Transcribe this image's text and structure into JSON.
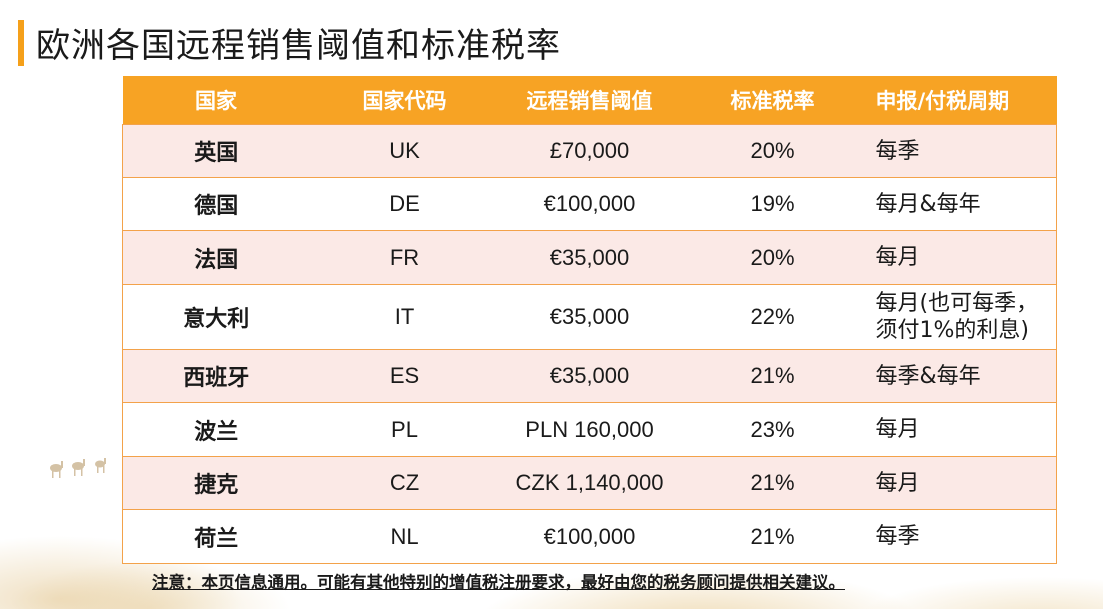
{
  "title": "欧洲各国远程销售阈值和标准税率",
  "table": {
    "headers": [
      "国家",
      "国家代码",
      "远程销售阈值",
      "标准税率",
      "申报/付税周期"
    ],
    "rows": [
      {
        "country": "英国",
        "code": "UK",
        "threshold": "£70,000",
        "rate": "20%",
        "period": [
          "每季"
        ]
      },
      {
        "country": "德国",
        "code": "DE",
        "threshold": "€100,000",
        "rate": "19%",
        "period": [
          "每月&每年"
        ]
      },
      {
        "country": "法国",
        "code": "FR",
        "threshold": "€35,000",
        "rate": "20%",
        "period": [
          "每月"
        ]
      },
      {
        "country": "意大利",
        "code": "IT",
        "threshold": "€35,000",
        "rate": "22%",
        "period": [
          "每月(也可每季，",
          "须付1%的利息)"
        ]
      },
      {
        "country": "西班牙",
        "code": "ES",
        "threshold": "€35,000",
        "rate": "21%",
        "period": [
          "每季&每年"
        ]
      },
      {
        "country": "波兰",
        "code": "PL",
        "threshold": "PLN 160,000",
        "rate": "23%",
        "period": [
          "每月"
        ]
      },
      {
        "country": "捷克",
        "code": "CZ",
        "threshold": "CZK 1,140,000",
        "rate": "21%",
        "period": [
          "每月"
        ]
      },
      {
        "country": "荷兰",
        "code": "NL",
        "threshold": "€100,000",
        "rate": "21%",
        "period": [
          "每季"
        ]
      }
    ]
  },
  "note": "注意：本页信息通用。可能有其他特别的增值税注册要求，最好由您的税务顾问提供相关建议。",
  "colors": {
    "accent": "#f7a324",
    "row_tint": "#fbe9e6",
    "border": "#f3a24a"
  }
}
